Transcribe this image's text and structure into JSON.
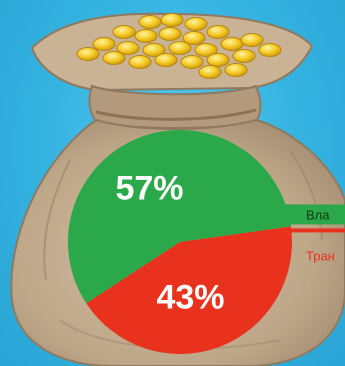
{
  "chart_data": {
    "type": "pie",
    "slices": [
      {
        "label": "Вла",
        "value": 57,
        "value_label": "57%",
        "color": "#2aa84a"
      },
      {
        "label": "Тран",
        "value": 43,
        "value_label": "43%",
        "color": "#e8321e"
      }
    ],
    "title": "",
    "legend_placement": "right"
  },
  "background": {
    "sky_color": "#36b5e2",
    "sack_color": "#c4ae90",
    "coin_color": "#f2c21e"
  }
}
